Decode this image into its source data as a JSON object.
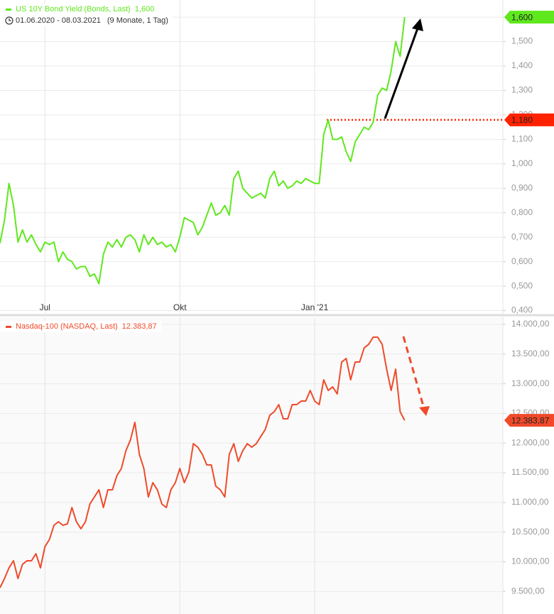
{
  "chart_data": [
    {
      "type": "line",
      "date_range": "01.06.2020 - 08.03.2021",
      "period": "(9 Monate, 1 Tag)",
      "categories": [
        null,
        null,
        null,
        null,
        null,
        null,
        null,
        null,
        null,
        null,
        "Jul",
        null,
        null,
        null,
        null,
        null,
        null,
        null,
        null,
        null,
        null,
        null,
        null,
        null,
        null,
        null,
        null,
        null,
        null,
        null,
        null,
        null,
        null,
        null,
        null,
        null,
        null,
        null,
        null,
        null,
        "Okt",
        null,
        null,
        null,
        null,
        null,
        null,
        null,
        null,
        null,
        null,
        null,
        null,
        null,
        null,
        null,
        null,
        null,
        null,
        null,
        null,
        null,
        null,
        null,
        null,
        null,
        null,
        null,
        null,
        null,
        "Jan '21",
        null,
        null,
        null,
        null,
        null,
        null,
        null,
        null,
        null,
        null,
        null,
        null,
        null,
        null,
        null,
        null,
        null,
        null,
        null,
        null
      ],
      "series": [
        {
          "name": "US 10Y Bond Yield (Bonds, Last)",
          "color": "#5fe81d",
          "last_label": "1,600",
          "values": [
            0.675,
            0.77,
            0.92,
            0.83,
            0.68,
            0.73,
            0.68,
            0.71,
            0.67,
            0.64,
            0.68,
            0.67,
            0.68,
            0.6,
            0.64,
            0.61,
            0.6,
            0.57,
            0.58,
            0.58,
            0.54,
            0.55,
            0.51,
            0.63,
            0.68,
            0.66,
            0.69,
            0.66,
            0.7,
            0.71,
            0.69,
            0.64,
            0.71,
            0.67,
            0.7,
            0.67,
            0.68,
            0.66,
            0.67,
            0.64,
            0.7,
            0.78,
            0.77,
            0.76,
            0.71,
            0.74,
            0.79,
            0.84,
            0.79,
            0.8,
            0.83,
            0.79,
            0.94,
            0.97,
            0.9,
            0.88,
            0.86,
            0.87,
            0.88,
            0.86,
            0.94,
            0.97,
            0.91,
            0.93,
            0.9,
            0.91,
            0.93,
            0.92,
            0.94,
            0.93,
            0.92,
            0.92,
            1.12,
            1.18,
            1.1,
            1.1,
            1.11,
            1.05,
            1.01,
            1.09,
            1.12,
            1.15,
            1.14,
            1.17,
            1.28,
            1.31,
            1.3,
            1.38,
            1.5,
            1.44,
            1.6
          ]
        }
      ],
      "reference_line": {
        "value": 1.18,
        "label": "1,180",
        "color": "#ff2200"
      },
      "ylim": [
        0.39,
        1.67
      ],
      "yticks": [
        {
          "value": 0.4,
          "label": "0,400"
        },
        {
          "value": 0.5,
          "label": "0,500"
        },
        {
          "value": 0.6,
          "label": "0,600"
        },
        {
          "value": 0.7,
          "label": "0,700"
        },
        {
          "value": 0.8,
          "label": "0,800"
        },
        {
          "value": 0.9,
          "label": "0,900"
        },
        {
          "value": 1.0,
          "label": "1,000"
        },
        {
          "value": 1.1,
          "label": "1,100"
        },
        {
          "value": 1.2,
          "label": "1,200"
        },
        {
          "value": 1.3,
          "label": "1,300"
        },
        {
          "value": 1.4,
          "label": "1,400"
        },
        {
          "value": 1.5,
          "label": "1,500"
        },
        {
          "value": 1.6,
          "label": "1,600"
        }
      ],
      "grid": true
    },
    {
      "type": "line",
      "series": [
        {
          "name": "Nasdaq-100 (NASDAQ, Last)",
          "color": "#f04a2a",
          "last_label": "12.383,87",
          "values": [
            9562,
            9718,
            9897,
            10017,
            9718,
            9957,
            10017,
            10017,
            10136,
            9897,
            10256,
            10376,
            10615,
            10675,
            10615,
            10639,
            10914,
            10675,
            10556,
            10675,
            10974,
            11093,
            11213,
            10914,
            11213,
            11213,
            11452,
            11572,
            11871,
            12050,
            12350,
            11811,
            11572,
            11093,
            11333,
            11213,
            10974,
            10914,
            11213,
            11333,
            11572,
            11333,
            11512,
            11990,
            11931,
            11811,
            11632,
            11632,
            11273,
            11213,
            11093,
            11811,
            11990,
            11692,
            11871,
            11990,
            11931,
            11990,
            12110,
            12230,
            12469,
            12529,
            12649,
            12409,
            12409,
            12649,
            12649,
            12708,
            12708,
            12887,
            12708,
            12649,
            13067,
            12887,
            12947,
            12828,
            13366,
            13426,
            13067,
            13366,
            13366,
            13605,
            13665,
            13785,
            13785,
            13665,
            13246,
            12887,
            13246,
            12529,
            12383.87
          ]
        }
      ],
      "ylim": [
        9120,
        14120
      ],
      "yticks": [
        {
          "value": 9500,
          "label": "9.500,00"
        },
        {
          "value": 10000,
          "label": "10.000,00"
        },
        {
          "value": 10500,
          "label": "10.500,00"
        },
        {
          "value": 11000,
          "label": "11.000,00"
        },
        {
          "value": 11500,
          "label": "11.500,00"
        },
        {
          "value": 12000,
          "label": "12.000,00"
        },
        {
          "value": 12500,
          "label": "12.500,00"
        },
        {
          "value": 13000,
          "label": "13.000,00"
        },
        {
          "value": 13500,
          "label": "13.500,00"
        },
        {
          "value": 14000,
          "label": "14.000,00"
        }
      ],
      "grid": true
    }
  ]
}
